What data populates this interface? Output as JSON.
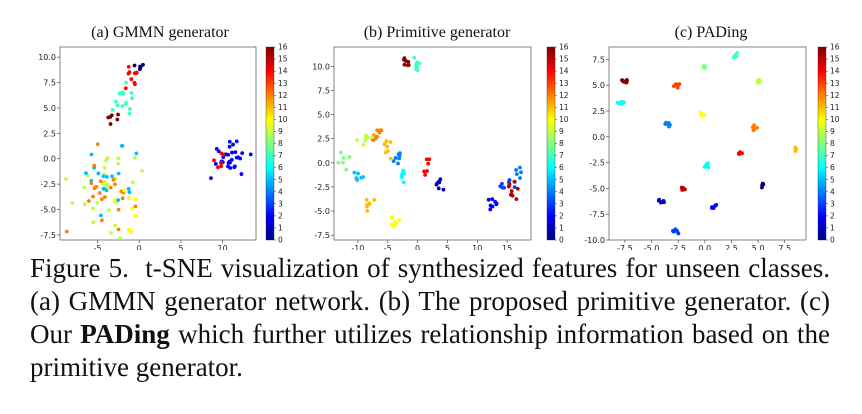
{
  "caption": {
    "label": "Figure 5.",
    "part1": "t-SNE visualization of synthesized features for unseen classes. (a) GMMN generator network. (b) The proposed primitive generator. (c) Our",
    "bold": "PADing",
    "part2": "which further utilizes relationship information based on the primitive generator."
  },
  "chart_data": [
    {
      "type": "scatter",
      "title": "(a) GMMN generator",
      "xticks": [
        -5,
        0,
        5,
        10
      ],
      "yticks": [
        -7.5,
        -5.0,
        -2.5,
        0.0,
        2.5,
        5.0,
        7.5,
        10.0
      ],
      "xlim": [
        -9.5,
        14
      ],
      "ylim": [
        -8,
        11
      ],
      "colorbar_ticks": [
        0,
        1,
        2,
        3,
        4,
        5,
        6,
        7,
        8,
        9,
        10,
        11,
        12,
        13,
        14,
        15,
        16
      ],
      "clusters": [
        {
          "class": 0,
          "cx": -0.3,
          "cy": 9.0,
          "sx": 0.4,
          "sy": 0.4,
          "n": 6
        },
        {
          "class": 14,
          "cx": -0.8,
          "cy": 8.0,
          "sx": 0.7,
          "sy": 0.6,
          "n": 10
        },
        {
          "class": 7,
          "cx": -2.0,
          "cy": 5.3,
          "sx": 0.9,
          "sy": 0.9,
          "n": 14
        },
        {
          "class": 16,
          "cx": -3.0,
          "cy": 4.2,
          "sx": 0.5,
          "sy": 0.8,
          "n": 6
        },
        {
          "class": 2,
          "cx": 10.8,
          "cy": 0.3,
          "sx": 1.1,
          "sy": 0.8,
          "n": 30
        },
        {
          "class": 14,
          "cx": 9.8,
          "cy": -0.2,
          "sx": 0.6,
          "sy": 0.7,
          "n": 6
        },
        {
          "class": 9,
          "cx": -3.5,
          "cy": -2.5,
          "sx": 2.2,
          "sy": 2.0,
          "n": 30
        },
        {
          "class": 5,
          "cx": -3.0,
          "cy": -2.2,
          "sx": 1.7,
          "sy": 1.7,
          "n": 18
        },
        {
          "class": 12,
          "cx": -4.0,
          "cy": -3.5,
          "sx": 1.8,
          "sy": 1.8,
          "n": 22
        },
        {
          "class": 10,
          "cx": -1.5,
          "cy": -4.5,
          "sx": 1.0,
          "sy": 1.0,
          "n": 8
        }
      ]
    },
    {
      "type": "scatter",
      "title": "(b) Primitive generator",
      "xticks": [
        -10,
        -5,
        0,
        5,
        10,
        15
      ],
      "yticks": [
        -7.5,
        -5.0,
        -2.5,
        0.0,
        2.5,
        5.0,
        7.5,
        10.0
      ],
      "xlim": [
        -14,
        19
      ],
      "ylim": [
        -8,
        12
      ],
      "colorbar_ticks": [
        0,
        1,
        2,
        3,
        4,
        5,
        6,
        7,
        8,
        9,
        10,
        11,
        12,
        13,
        14,
        15,
        16
      ],
      "clusters": [
        {
          "class": 16,
          "cx": -1.8,
          "cy": 10.5,
          "sx": 0.4,
          "sy": 0.4,
          "n": 8
        },
        {
          "class": 7,
          "cx": -0.2,
          "cy": 10.1,
          "sx": 0.3,
          "sy": 0.4,
          "n": 8
        },
        {
          "class": 12,
          "cx": -6.8,
          "cy": 3.0,
          "sx": 0.6,
          "sy": 0.6,
          "n": 10
        },
        {
          "class": 9,
          "cx": -8.7,
          "cy": 2.5,
          "sx": 0.6,
          "sy": 0.5,
          "n": 8
        },
        {
          "class": 11,
          "cx": -5.0,
          "cy": 1.5,
          "sx": 0.5,
          "sy": 0.6,
          "n": 8
        },
        {
          "class": 4,
          "cx": -3.3,
          "cy": 0.6,
          "sx": 0.5,
          "sy": 0.5,
          "n": 8
        },
        {
          "class": 8,
          "cx": -12.2,
          "cy": 0.0,
          "sx": 0.5,
          "sy": 0.5,
          "n": 6
        },
        {
          "class": 5,
          "cx": -10.0,
          "cy": -1.3,
          "sx": 0.5,
          "sy": 0.4,
          "n": 6
        },
        {
          "class": 6,
          "cx": -2.6,
          "cy": -1.5,
          "sx": 0.4,
          "sy": 0.5,
          "n": 8
        },
        {
          "class": 14,
          "cx": 1.7,
          "cy": -0.7,
          "sx": 0.4,
          "sy": 0.4,
          "n": 6
        },
        {
          "class": 1,
          "cx": 3.6,
          "cy": -2.2,
          "sx": 0.4,
          "sy": 0.3,
          "n": 8
        },
        {
          "class": 11,
          "cx": -8.0,
          "cy": -4.5,
          "sx": 0.4,
          "sy": 0.4,
          "n": 8
        },
        {
          "class": 10,
          "cx": -4.0,
          "cy": -6.2,
          "sx": 0.4,
          "sy": 0.4,
          "n": 8
        },
        {
          "class": 2,
          "cx": 12.6,
          "cy": -4.3,
          "sx": 0.5,
          "sy": 0.5,
          "n": 8
        },
        {
          "class": 3,
          "cx": 15.2,
          "cy": -2.2,
          "sx": 0.7,
          "sy": 0.6,
          "n": 8
        },
        {
          "class": 15,
          "cx": 15.7,
          "cy": -3.0,
          "sx": 0.6,
          "sy": 0.5,
          "n": 10
        },
        {
          "class": 4,
          "cx": 17.2,
          "cy": -1.1,
          "sx": 0.3,
          "sy": 0.3,
          "n": 5
        }
      ]
    },
    {
      "type": "scatter",
      "title": "(c)  PADing",
      "xticks": [
        -7.5,
        -5.0,
        -2.5,
        0.0,
        2.5,
        5.0,
        7.5
      ],
      "yticks": [
        -10.0,
        -7.5,
        -5.0,
        -2.5,
        0.0,
        2.5,
        5.0,
        7.5
      ],
      "xlim": [
        -9,
        9.5
      ],
      "ylim": [
        -10,
        8.7
      ],
      "colorbar_ticks": [
        0,
        1,
        2,
        3,
        4,
        5,
        6,
        7,
        8,
        9,
        10,
        11,
        12,
        13,
        14,
        15,
        16
      ],
      "clusters": [
        {
          "class": 7,
          "cx": 2.9,
          "cy": 7.8,
          "sx": 0.12,
          "sy": 0.12,
          "n": 6
        },
        {
          "class": 8,
          "cx": -0.1,
          "cy": 6.7,
          "sx": 0.12,
          "sy": 0.12,
          "n": 6
        },
        {
          "class": 16,
          "cx": -7.5,
          "cy": 5.4,
          "sx": 0.18,
          "sy": 0.12,
          "n": 8
        },
        {
          "class": 13,
          "cx": -2.6,
          "cy": 5.1,
          "sx": 0.12,
          "sy": 0.12,
          "n": 6
        },
        {
          "class": 9,
          "cx": 5.0,
          "cy": 5.3,
          "sx": 0.12,
          "sy": 0.12,
          "n": 6
        },
        {
          "class": 6,
          "cx": -7.9,
          "cy": 3.2,
          "sx": 0.15,
          "sy": 0.12,
          "n": 6
        },
        {
          "class": 10,
          "cx": -0.4,
          "cy": 2.2,
          "sx": 0.12,
          "sy": 0.12,
          "n": 6
        },
        {
          "class": 4,
          "cx": -3.5,
          "cy": 1.2,
          "sx": 0.12,
          "sy": 0.12,
          "n": 6
        },
        {
          "class": 12,
          "cx": 4.6,
          "cy": 0.8,
          "sx": 0.12,
          "sy": 0.12,
          "n": 6
        },
        {
          "class": 14,
          "cx": 3.2,
          "cy": -1.6,
          "sx": 0.12,
          "sy": 0.12,
          "n": 6
        },
        {
          "class": 11,
          "cx": 8.5,
          "cy": -1.2,
          "sx": 0.1,
          "sy": 0.1,
          "n": 5
        },
        {
          "class": 6,
          "cx": 0.2,
          "cy": -2.8,
          "sx": 0.12,
          "sy": 0.12,
          "n": 6
        },
        {
          "class": 0,
          "cx": 5.4,
          "cy": -4.7,
          "sx": 0.12,
          "sy": 0.12,
          "n": 6
        },
        {
          "class": 15,
          "cx": -2.0,
          "cy": -5.0,
          "sx": 0.15,
          "sy": 0.12,
          "n": 6
        },
        {
          "class": 1,
          "cx": -4.1,
          "cy": -6.2,
          "sx": 0.12,
          "sy": 0.12,
          "n": 6
        },
        {
          "class": 2,
          "cx": 0.8,
          "cy": -6.8,
          "sx": 0.12,
          "sy": 0.12,
          "n": 6
        },
        {
          "class": 3,
          "cx": -2.8,
          "cy": -9.2,
          "sx": 0.12,
          "sy": 0.12,
          "n": 6
        }
      ]
    }
  ]
}
